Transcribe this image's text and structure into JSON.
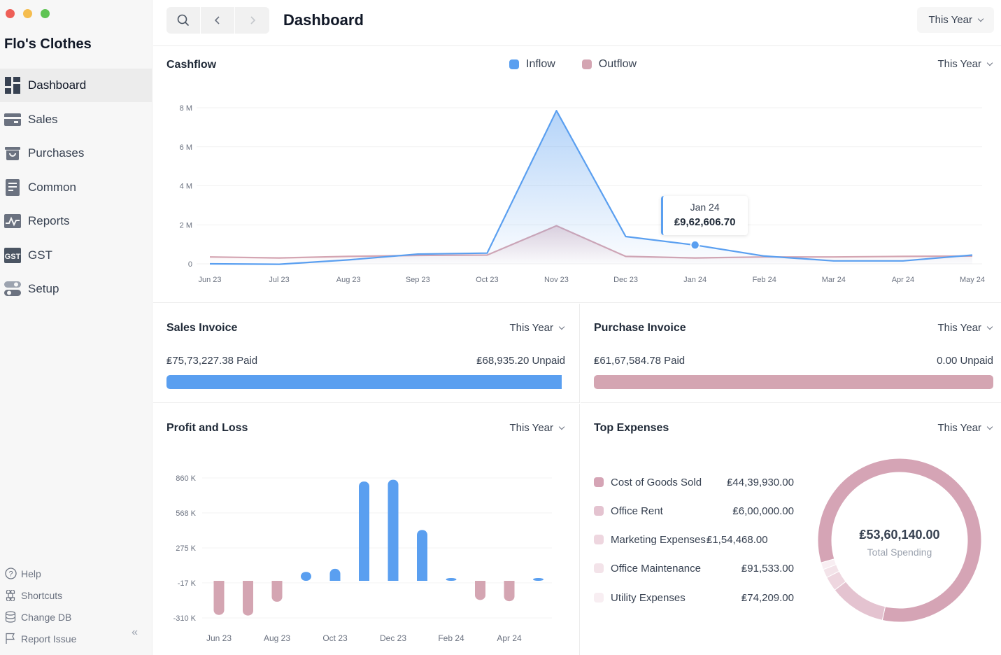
{
  "app": {
    "company": "Flo's Clothes",
    "traffic_colors": [
      "#ee5f57",
      "#f5bd4f",
      "#5fc454"
    ]
  },
  "sidebar": {
    "items": [
      {
        "label": "Dashboard",
        "icon": "dashboard-icon"
      },
      {
        "label": "Sales",
        "icon": "sales-icon"
      },
      {
        "label": "Purchases",
        "icon": "purchases-icon"
      },
      {
        "label": "Common",
        "icon": "common-icon"
      },
      {
        "label": "Reports",
        "icon": "reports-icon"
      },
      {
        "label": "GST",
        "icon": "gst-icon"
      },
      {
        "label": "Setup",
        "icon": "setup-icon"
      }
    ],
    "footer": [
      {
        "label": "Help",
        "icon": "help-icon"
      },
      {
        "label": "Shortcuts",
        "icon": "command-icon"
      },
      {
        "label": "Change DB",
        "icon": "database-icon"
      },
      {
        "label": "Report Issue",
        "icon": "flag-icon"
      }
    ],
    "collapse_glyph": "«"
  },
  "header": {
    "title": "Dashboard",
    "period": "This Year"
  },
  "cashflow": {
    "title": "Cashflow",
    "period": "This Year",
    "legend": [
      {
        "label": "Inflow",
        "color": "#5a9ff0"
      },
      {
        "label": "Outflow",
        "color": "#d4a5b2"
      }
    ],
    "tooltip": {
      "label": "Jan 24",
      "value": "₤9,62,606.70"
    }
  },
  "sales_invoice": {
    "title": "Sales Invoice",
    "period": "This Year",
    "paid": "₤75,73,227.38 Paid",
    "unpaid": "₤68,935.20 Unpaid",
    "paid_fraction": 0.991,
    "color": "#5a9ff0"
  },
  "purchase_invoice": {
    "title": "Purchase Invoice",
    "period": "This Year",
    "paid": "₤61,67,584.78 Paid",
    "unpaid": "0.00 Unpaid",
    "paid_fraction": 1.0,
    "color": "#d4a5b2"
  },
  "profit_loss": {
    "title": "Profit and Loss",
    "period": "This Year"
  },
  "top_expenses": {
    "title": "Top Expenses",
    "period": "This Year",
    "total": "₤53,60,140.00",
    "total_label": "Total Spending",
    "items": [
      {
        "name": "Cost of Goods Sold",
        "value": "₤44,39,930.00",
        "amount": 4439930,
        "color": "#d5a4b5"
      },
      {
        "name": "Office Rent",
        "value": "₤6,00,000.00",
        "amount": 600000,
        "color": "#e4c3d0"
      },
      {
        "name": "Marketing Expenses",
        "value": "₤1,54,468.00",
        "amount": 154468,
        "color": "#eed6df"
      },
      {
        "name": "Office Maintenance",
        "value": "₤91,533.00",
        "amount": 91533,
        "color": "#f3e3e9"
      },
      {
        "name": "Utility Expenses",
        "value": "₤74,209.00",
        "amount": 74209,
        "color": "#f8eef2"
      }
    ]
  },
  "chart_data": [
    {
      "type": "line",
      "title": "Cashflow",
      "categories": [
        "Jun 23",
        "Jul 23",
        "Aug 23",
        "Sep 23",
        "Oct 23",
        "Nov 23",
        "Dec 23",
        "Jan 24",
        "Feb 24",
        "Mar 24",
        "Apr 24",
        "May 24"
      ],
      "y_ticks": [
        "0",
        "2 M",
        "4 M",
        "6 M",
        "8 M"
      ],
      "ylim": [
        0,
        8000000
      ],
      "grid": true,
      "legend": "top-center",
      "series": [
        {
          "name": "Inflow",
          "color": "#5a9ff0",
          "values": [
            0,
            -20000,
            200000,
            500000,
            550000,
            7850000,
            1400000,
            962606.7,
            400000,
            150000,
            150000,
            450000
          ]
        },
        {
          "name": "Outflow",
          "color": "#d4a5b2",
          "values": [
            350000,
            300000,
            380000,
            430000,
            450000,
            1950000,
            380000,
            300000,
            350000,
            350000,
            380000,
            400000
          ]
        }
      ]
    },
    {
      "type": "bar",
      "title": "Profit and Loss",
      "categories": [
        "Jun 23",
        "Jul 23",
        "Aug 23",
        "Sep 23",
        "Oct 23",
        "Nov 23",
        "Dec 23",
        "Jan 24",
        "Feb 24",
        "Mar 24",
        "Apr 24",
        "May 24"
      ],
      "x_tick_labels": [
        "Jun 23",
        "Aug 23",
        "Oct 23",
        "Dec 23",
        "Feb 24",
        "Apr 24"
      ],
      "y_ticks": [
        "860 K",
        "568 K",
        "275 K",
        "-17 K",
        "-310 K"
      ],
      "y_tick_values": [
        860000,
        568000,
        275000,
        -17000,
        -310000
      ],
      "ylim": [
        -310000,
        860000
      ],
      "grid": true,
      "positive_color": "#5a9ff0",
      "negative_color": "#d4a5b2",
      "values": [
        -285000,
        -290000,
        -175000,
        75000,
        100000,
        830000,
        845000,
        425000,
        20000,
        -160000,
        -170000,
        20000
      ]
    }
  ]
}
